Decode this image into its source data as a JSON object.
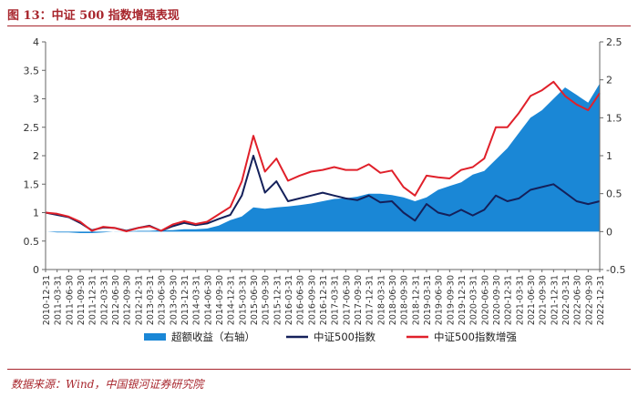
{
  "title": "图 13：中证 500 指数增强表现",
  "source": "数据来源：Wind，中国银河证券研究院",
  "chart_data": {
    "type": "line",
    "left_axis": {
      "min": 0,
      "max": 4,
      "ticks": [
        "0",
        "0.5",
        "1",
        "1.5",
        "2",
        "2.5",
        "3",
        "3.5",
        "4"
      ]
    },
    "right_axis": {
      "min": -0.5,
      "max": 2.5,
      "ticks": [
        "-0.5",
        "0",
        "0.5",
        "1",
        "1.5",
        "2",
        "2.5"
      ]
    },
    "x": [
      "2010-12-31",
      "2011-03-31",
      "2011-06-30",
      "2011-09-30",
      "2011-12-31",
      "2012-03-31",
      "2012-06-30",
      "2012-09-30",
      "2012-12-31",
      "2013-03-31",
      "2013-06-30",
      "2013-09-30",
      "2013-12-31",
      "2014-03-31",
      "2014-06-30",
      "2014-09-30",
      "2014-12-31",
      "2015-03-31",
      "2015-06-30",
      "2015-09-30",
      "2015-12-31",
      "2016-03-31",
      "2016-06-30",
      "2016-09-30",
      "2016-12-31",
      "2017-03-31",
      "2017-06-30",
      "2017-09-30",
      "2017-12-31",
      "2018-03-31",
      "2018-06-30",
      "2018-09-30",
      "2018-12-31",
      "2019-03-31",
      "2019-06-30",
      "2019-09-30",
      "2019-12-31",
      "2020-03-31",
      "2020-06-30",
      "2020-09-30",
      "2020-12-31",
      "2021-03-31",
      "2021-06-30",
      "2021-09-30",
      "2021-12-31",
      "2022-03-31",
      "2022-06-30",
      "2022-09-30",
      "2022-12-31"
    ],
    "series": [
      {
        "name": "超额收益（右轴）",
        "axis": "right",
        "kind": "area",
        "color": "#1a87d6",
        "values": [
          0.0,
          -0.01,
          -0.01,
          -0.02,
          -0.02,
          -0.01,
          0.0,
          0.0,
          0.01,
          0.01,
          0.02,
          0.02,
          0.03,
          0.03,
          0.04,
          0.08,
          0.15,
          0.2,
          0.32,
          0.3,
          0.32,
          0.33,
          0.35,
          0.37,
          0.4,
          0.43,
          0.44,
          0.46,
          0.5,
          0.5,
          0.48,
          0.45,
          0.4,
          0.45,
          0.55,
          0.6,
          0.65,
          0.75,
          0.8,
          0.95,
          1.1,
          1.3,
          1.5,
          1.6,
          1.75,
          1.9,
          1.8,
          1.7,
          1.95
        ]
      },
      {
        "name": "中证500指数",
        "axis": "left",
        "kind": "line",
        "color": "#14205a",
        "values": [
          1.0,
          0.96,
          0.92,
          0.82,
          0.69,
          0.74,
          0.73,
          0.68,
          0.73,
          0.77,
          0.68,
          0.76,
          0.82,
          0.78,
          0.81,
          0.89,
          0.96,
          1.3,
          2.0,
          1.35,
          1.55,
          1.2,
          1.25,
          1.3,
          1.35,
          1.3,
          1.25,
          1.22,
          1.3,
          1.18,
          1.2,
          1.0,
          0.86,
          1.15,
          1.0,
          0.95,
          1.05,
          0.95,
          1.05,
          1.3,
          1.2,
          1.25,
          1.4,
          1.45,
          1.5,
          1.35,
          1.2,
          1.15,
          1.2
        ]
      },
      {
        "name": "中证500指数增强",
        "axis": "left",
        "kind": "line",
        "color": "#e0202a",
        "values": [
          1.0,
          0.98,
          0.93,
          0.84,
          0.68,
          0.75,
          0.73,
          0.67,
          0.73,
          0.76,
          0.68,
          0.79,
          0.85,
          0.8,
          0.84,
          0.97,
          1.1,
          1.55,
          2.35,
          1.72,
          1.95,
          1.56,
          1.65,
          1.72,
          1.75,
          1.8,
          1.75,
          1.75,
          1.85,
          1.7,
          1.74,
          1.45,
          1.3,
          1.65,
          1.62,
          1.6,
          1.75,
          1.8,
          1.95,
          2.5,
          2.5,
          2.75,
          3.05,
          3.15,
          3.3,
          3.05,
          2.9,
          2.8,
          3.1
        ]
      }
    ],
    "legend_position": "bottom",
    "grid": false
  }
}
